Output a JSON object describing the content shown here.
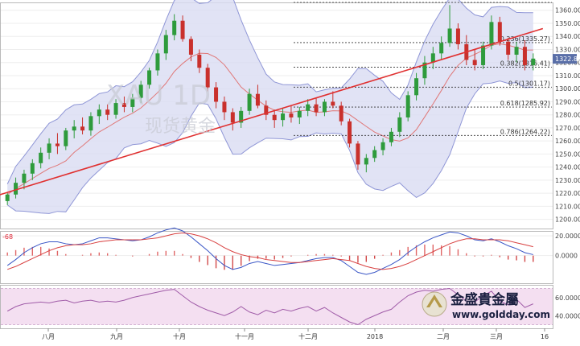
{
  "chart_data": [
    {
      "type": "candlestick",
      "panel": "price",
      "watermark_symbol": "XAU 1D",
      "watermark_name": "现货黄金",
      "last_price_label": "1322.85",
      "y_ticks": [
        "1360.00",
        "1350.00",
        "1340.00",
        "1330.00",
        "1320.00",
        "1310.00",
        "1300.00",
        "1290.00",
        "1280.00",
        "1270.00",
        "1260.00",
        "1250.00",
        "1240.00",
        "1230.00",
        "1220.00",
        "1210.00",
        "1200.00"
      ],
      "ylim": [
        1193,
        1366
      ],
      "x_ticks": [
        "八月",
        "九月",
        "十月",
        "十一月",
        "十二月",
        "2018",
        "二月",
        "三月",
        "16"
      ],
      "fib_levels": [
        {
          "label": "0.236(1335.27)",
          "value": 1335.27
        },
        {
          "label": "0.382(1316.41)",
          "value": 1316.41
        },
        {
          "label": "0.5(1301.17)",
          "value": 1301.17
        },
        {
          "label": "0.618(1285.92)",
          "value": 1285.92
        },
        {
          "label": "0.786(1264.22)",
          "value": 1264.22
        }
      ],
      "fib_anchors": {
        "high": 1366.0,
        "low": 1236.0
      },
      "trendline": {
        "from": [
          1,
          1223
        ],
        "to": [
          63,
          1346
        ],
        "color": "#e03030"
      },
      "candles": [
        [
          1214,
          1221,
          1211,
          1219
        ],
        [
          1219,
          1232,
          1216,
          1228
        ],
        [
          1228,
          1238,
          1223,
          1235
        ],
        [
          1235,
          1246,
          1230,
          1243
        ],
        [
          1243,
          1255,
          1239,
          1251
        ],
        [
          1251,
          1262,
          1246,
          1258
        ],
        [
          1258,
          1266,
          1250,
          1256
        ],
        [
          1256,
          1270,
          1253,
          1268
        ],
        [
          1268,
          1276,
          1262,
          1271
        ],
        [
          1271,
          1278,
          1265,
          1268
        ],
        [
          1268,
          1282,
          1264,
          1279
        ],
        [
          1279,
          1288,
          1273,
          1284
        ],
        [
          1284,
          1288,
          1276,
          1280
        ],
        [
          1280,
          1292,
          1277,
          1289
        ],
        [
          1289,
          1294,
          1282,
          1286
        ],
        [
          1286,
          1296,
          1282,
          1293
        ],
        [
          1293,
          1306,
          1289,
          1303
        ],
        [
          1303,
          1316,
          1300,
          1314
        ],
        [
          1314,
          1330,
          1310,
          1327
        ],
        [
          1327,
          1345,
          1322,
          1341
        ],
        [
          1341,
          1357,
          1337,
          1352
        ],
        [
          1352,
          1356,
          1336,
          1338
        ],
        [
          1338,
          1340,
          1321,
          1326
        ],
        [
          1326,
          1330,
          1312,
          1316
        ],
        [
          1316,
          1319,
          1298,
          1301
        ],
        [
          1301,
          1305,
          1285,
          1290
        ],
        [
          1290,
          1294,
          1276,
          1282
        ],
        [
          1282,
          1285,
          1268,
          1274
        ],
        [
          1274,
          1286,
          1270,
          1283
        ],
        [
          1283,
          1300,
          1280,
          1296
        ],
        [
          1296,
          1303,
          1285,
          1287
        ],
        [
          1287,
          1291,
          1276,
          1280
        ],
        [
          1280,
          1284,
          1270,
          1276
        ],
        [
          1276,
          1285,
          1271,
          1281
        ],
        [
          1281,
          1287,
          1274,
          1278
        ],
        [
          1278,
          1286,
          1273,
          1283
        ],
        [
          1283,
          1292,
          1279,
          1288
        ],
        [
          1288,
          1293,
          1279,
          1282
        ],
        [
          1282,
          1292,
          1279,
          1290
        ],
        [
          1290,
          1298,
          1285,
          1287
        ],
        [
          1287,
          1290,
          1272,
          1275
        ],
        [
          1275,
          1277,
          1255,
          1258
        ],
        [
          1258,
          1260,
          1238,
          1242
        ],
        [
          1242,
          1250,
          1236,
          1247
        ],
        [
          1247,
          1256,
          1244,
          1253
        ],
        [
          1253,
          1262,
          1249,
          1259
        ],
        [
          1259,
          1270,
          1256,
          1267
        ],
        [
          1267,
          1282,
          1263,
          1278
        ],
        [
          1278,
          1298,
          1275,
          1295
        ],
        [
          1295,
          1312,
          1291,
          1308
        ],
        [
          1308,
          1325,
          1303,
          1320
        ],
        [
          1320,
          1332,
          1315,
          1327
        ],
        [
          1327,
          1340,
          1322,
          1335
        ],
        [
          1335,
          1364,
          1332,
          1346
        ],
        [
          1346,
          1350,
          1330,
          1334
        ],
        [
          1334,
          1341,
          1318,
          1322
        ],
        [
          1322,
          1330,
          1314,
          1318
        ],
        [
          1318,
          1336,
          1315,
          1333
        ],
        [
          1333,
          1356,
          1330,
          1351
        ],
        [
          1351,
          1355,
          1333,
          1336
        ],
        [
          1336,
          1339,
          1322,
          1326
        ],
        [
          1326,
          1336,
          1320,
          1332
        ],
        [
          1332,
          1337,
          1314,
          1318
        ],
        [
          1318,
          1327,
          1314,
          1323
        ]
      ]
    },
    {
      "type": "line",
      "panel": "macd",
      "label": "-68",
      "y_ticks": [
        "20.0000",
        "0.0000"
      ],
      "ylim": [
        -28,
        25
      ],
      "series": [
        {
          "values": [
            -10,
            -4,
            3,
            8,
            12,
            14,
            14,
            12,
            11,
            12,
            15,
            18,
            18,
            17,
            16,
            15,
            16,
            19,
            23,
            26,
            28,
            25,
            19,
            12,
            5,
            -3,
            -10,
            -14,
            -12,
            -8,
            -6,
            -8,
            -10,
            -9,
            -8,
            -7,
            -5,
            -3,
            -2,
            -2,
            -5,
            -11,
            -17,
            -19,
            -17,
            -13,
            -9,
            -4,
            3,
            9,
            14,
            18,
            21,
            24,
            23,
            20,
            16,
            15,
            17,
            14,
            10,
            7,
            3,
            1
          ],
          "color": "#3a56c6"
        },
        {
          "values": [
            -14,
            -11,
            -7,
            -3,
            1,
            5,
            8,
            10,
            11,
            11,
            12,
            14,
            15,
            16,
            16,
            16,
            16,
            17,
            18,
            20,
            22,
            23,
            22,
            20,
            17,
            13,
            8,
            4,
            1,
            -1,
            -2,
            -4,
            -5,
            -6,
            -7,
            -7,
            -6,
            -5,
            -4,
            -3,
            -4,
            -5,
            -8,
            -11,
            -13,
            -14,
            -13,
            -11,
            -8,
            -4,
            0,
            4,
            8,
            12,
            15,
            17,
            17,
            16,
            16,
            16,
            15,
            13,
            11,
            9
          ],
          "color": "#d84040"
        }
      ]
    },
    {
      "type": "line",
      "panel": "rsi",
      "y_ticks": [
        "60.0000",
        "40.0000"
      ],
      "ylim": [
        26,
        74
      ],
      "bands": [
        70,
        30
      ],
      "values": [
        45,
        50,
        53,
        54,
        55,
        54,
        56,
        57,
        54,
        56,
        57,
        55,
        56,
        55,
        57,
        60,
        62,
        64,
        66,
        68,
        69,
        62,
        55,
        50,
        46,
        43,
        40,
        44,
        50,
        44,
        41,
        46,
        43,
        47,
        45,
        48,
        50,
        45,
        49,
        43,
        38,
        33,
        30,
        36,
        40,
        44,
        47,
        55,
        62,
        66,
        68,
        67,
        69,
        70,
        63,
        56,
        55,
        62,
        67,
        56,
        52,
        58,
        49,
        53
      ],
      "color": "#a05ca8"
    }
  ],
  "brand": {
    "name": "金盛貴金屬",
    "url": "www.goldday.com"
  },
  "colors": {
    "band_fill": "#d9dcf3",
    "band_line": "#8f96d6",
    "ma_line": "#e07878",
    "up": "#2e9b3c",
    "down": "#c9302c",
    "rsi_fill": "#f4dff1"
  }
}
